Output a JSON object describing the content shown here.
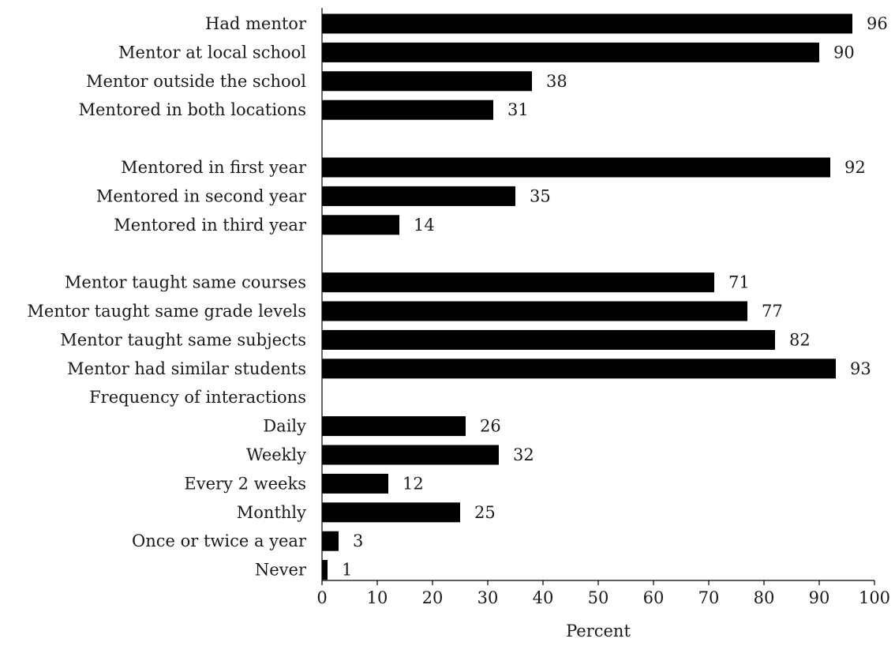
{
  "chart_data": {
    "type": "bar",
    "orientation": "horizontal",
    "title": "",
    "xlabel": "Percent",
    "ylabel": "",
    "xlim": [
      0,
      100
    ],
    "xticks": [
      0,
      10,
      20,
      30,
      40,
      50,
      60,
      70,
      80,
      90,
      100
    ],
    "grid": false,
    "legend": "none",
    "bar_color": "#000000",
    "rows": [
      {
        "label": "Had mentor",
        "value": 96
      },
      {
        "label": "Mentor at local school",
        "value": 90
      },
      {
        "label": "Mentor outside the school",
        "value": 38
      },
      {
        "label": "Mentored in both locations",
        "value": 31
      },
      {
        "label": "",
        "value": null
      },
      {
        "label": "Mentored in first year",
        "value": 92
      },
      {
        "label": "Mentored in second year",
        "value": 35
      },
      {
        "label": "Mentored in third year",
        "value": 14
      },
      {
        "label": "",
        "value": null
      },
      {
        "label": "Mentor taught same courses",
        "value": 71
      },
      {
        "label": "Mentor taught same grade levels",
        "value": 77
      },
      {
        "label": "Mentor taught same subjects",
        "value": 82
      },
      {
        "label": "Mentor had similar students",
        "value": 93
      },
      {
        "label": "Frequency of interactions",
        "value": null
      },
      {
        "label": "Daily",
        "value": 26
      },
      {
        "label": "Weekly",
        "value": 32
      },
      {
        "label": "Every 2 weeks",
        "value": 12
      },
      {
        "label": "Monthly",
        "value": 25
      },
      {
        "label": "Once or twice a year",
        "value": 3
      },
      {
        "label": "Never",
        "value": 1
      }
    ]
  }
}
